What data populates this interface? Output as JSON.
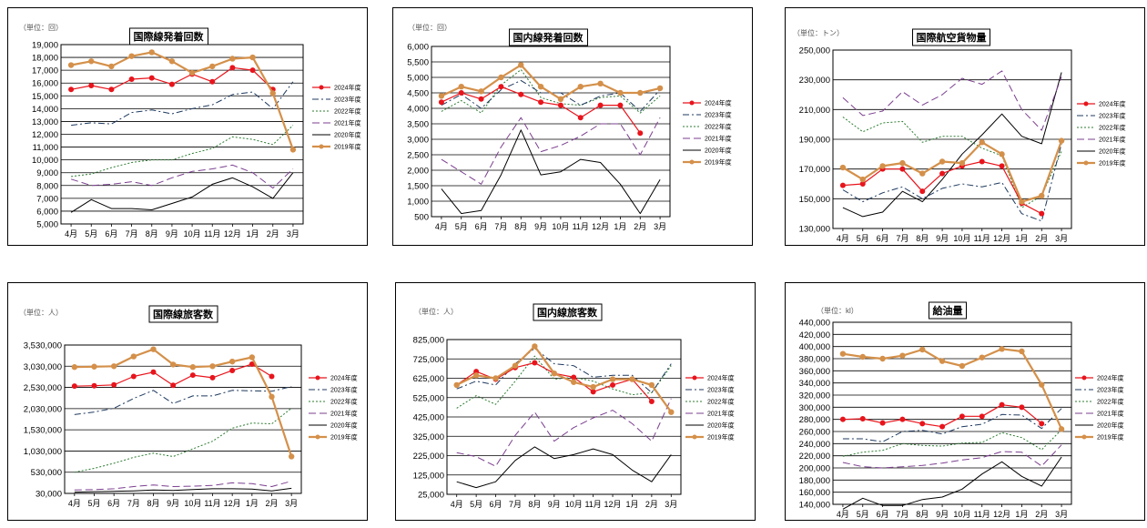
{
  "months": [
    "4月",
    "5月",
    "6月",
    "7月",
    "8月",
    "9月",
    "10月",
    "11月",
    "12月",
    "1月",
    "2月",
    "3月"
  ],
  "series_names": [
    "2024年度",
    "2023年度",
    "2022年度",
    "2021年度",
    "2020年度",
    "2019年度"
  ],
  "colors": {
    "y2024": "#e8141c",
    "y2023": "#1f3a5f",
    "y2022": "#2e7d32",
    "y2021": "#7b3f8f",
    "y2020": "#000000",
    "y2019": "#d4904a"
  },
  "chart_data": [
    {
      "type": "line",
      "title": "国際線発着回数",
      "unit": "（単位：回）",
      "ylim": [
        5000,
        19000
      ],
      "yticks": [
        "5,000",
        "6,000",
        "7,000",
        "8,000",
        "9,000",
        "10,000",
        "11,000",
        "12,000",
        "13,000",
        "14,000",
        "15,000",
        "16,000",
        "17,000",
        "18,000",
        "19,000"
      ],
      "categories": [
        "4月",
        "5月",
        "6月",
        "7月",
        "8月",
        "9月",
        "10月",
        "11月",
        "12月",
        "1月",
        "2月",
        "3月"
      ],
      "series": [
        {
          "name": "2024年度",
          "values": [
            15500,
            15800,
            15500,
            16300,
            16400,
            15900,
            16700,
            16100,
            17200,
            17000,
            15500,
            null
          ]
        },
        {
          "name": "2023年度",
          "values": [
            12700,
            12900,
            12800,
            13700,
            13900,
            13600,
            14000,
            14300,
            15100,
            15300,
            14000,
            16100
          ]
        },
        {
          "name": "2022年度",
          "values": [
            8700,
            8900,
            9400,
            9800,
            10000,
            10000,
            10500,
            10900,
            11800,
            11600,
            11200,
            12700
          ]
        },
        {
          "name": "2021年度",
          "values": [
            8500,
            8000,
            8100,
            8300,
            8000,
            8600,
            9100,
            9300,
            9600,
            9000,
            7800,
            9300
          ]
        },
        {
          "name": "2020年度",
          "values": [
            5900,
            6900,
            6200,
            6200,
            6100,
            6600,
            7100,
            8100,
            8600,
            7900,
            7000,
            9000
          ]
        },
        {
          "name": "2019年度",
          "values": [
            17400,
            17700,
            17300,
            18100,
            18400,
            17700,
            16800,
            17300,
            17900,
            18000,
            15200,
            10800
          ]
        }
      ]
    },
    {
      "type": "line",
      "title": "国内線発着回数",
      "unit": "（単位：回）",
      "ylim": [
        500,
        6000
      ],
      "yticks": [
        "500",
        "1,000",
        "1,500",
        "2,000",
        "2,500",
        "3,000",
        "3,500",
        "4,000",
        "4,500",
        "5,000",
        "5,500",
        "6,000"
      ],
      "categories": [
        "4月",
        "5月",
        "6月",
        "7月",
        "8月",
        "9月",
        "10月",
        "11月",
        "12月",
        "1月",
        "2月",
        "3月"
      ],
      "series": [
        {
          "name": "2024年度",
          "values": [
            4200,
            4500,
            4300,
            4700,
            4450,
            4200,
            4100,
            3700,
            4100,
            4100,
            3200,
            null
          ]
        },
        {
          "name": "2023年度",
          "values": [
            4100,
            4450,
            4000,
            4600,
            4900,
            4500,
            4500,
            4100,
            4400,
            4500,
            3900,
            4600
          ]
        },
        {
          "name": "2022年度",
          "values": [
            3900,
            4250,
            3850,
            4750,
            5250,
            4350,
            4150,
            4100,
            4350,
            4400,
            3850,
            4400
          ]
        },
        {
          "name": "2021年度",
          "values": [
            2350,
            1950,
            1550,
            2750,
            3700,
            2600,
            2800,
            3100,
            3500,
            3500,
            2500,
            3700
          ]
        },
        {
          "name": "2020年度",
          "values": [
            1400,
            600,
            700,
            1850,
            3300,
            1850,
            1950,
            2350,
            2250,
            1550,
            600,
            1700
          ]
        },
        {
          "name": "2019年度",
          "values": [
            4400,
            4700,
            4550,
            5000,
            5400,
            4700,
            4300,
            4700,
            4800,
            4500,
            4500,
            4650
          ]
        }
      ]
    },
    {
      "type": "line",
      "title": "国際航空貨物量",
      "unit": "（単位：トン）",
      "ylim": [
        130000,
        250000
      ],
      "yticks": [
        "130,000",
        "150,000",
        "170,000",
        "190,000",
        "210,000",
        "230,000",
        "250,000"
      ],
      "categories": [
        "4月",
        "5月",
        "6月",
        "7月",
        "8月",
        "9月",
        "10月",
        "11月",
        "12月",
        "1月",
        "2月",
        "3月"
      ],
      "series": [
        {
          "name": "2024年度",
          "values": [
            159000,
            160000,
            170000,
            170000,
            155000,
            167000,
            172000,
            175000,
            172000,
            147000,
            140000,
            null
          ]
        },
        {
          "name": "2023年度",
          "values": [
            156000,
            148000,
            154000,
            158000,
            150000,
            157000,
            160000,
            158000,
            161000,
            140000,
            135000,
            187000
          ]
        },
        {
          "name": "2022年度",
          "values": [
            205000,
            195000,
            201000,
            202000,
            188000,
            192000,
            192000,
            184000,
            179000,
            144000,
            152000,
            182000
          ]
        },
        {
          "name": "2021年度",
          "values": [
            218000,
            206000,
            209000,
            222000,
            213000,
            220000,
            231000,
            227000,
            236000,
            210000,
            196000,
            232000
          ]
        },
        {
          "name": "2020年度",
          "values": [
            144000,
            138000,
            141000,
            155000,
            148000,
            163000,
            180000,
            193000,
            207000,
            192000,
            187000,
            235000
          ]
        },
        {
          "name": "2019年度",
          "values": [
            171000,
            163000,
            172000,
            174000,
            167000,
            175000,
            174000,
            188000,
            180000,
            148000,
            152000,
            189000
          ]
        }
      ]
    },
    {
      "type": "line",
      "title": "国際線旅客数",
      "unit": "（単位：人）",
      "ylim": [
        30000,
        3530000
      ],
      "yticks": [
        "30,000",
        "530,000",
        "1,030,000",
        "1,530,000",
        "2,030,000",
        "2,530,000",
        "3,030,000",
        "3,530,000"
      ],
      "categories": [
        "4月",
        "5月",
        "6月",
        "7月",
        "8月",
        "9月",
        "10月",
        "11月",
        "12月",
        "1月",
        "2月",
        "3月"
      ],
      "series": [
        {
          "name": "2024年度",
          "values": [
            2560000,
            2570000,
            2590000,
            2790000,
            2890000,
            2580000,
            2820000,
            2760000,
            2930000,
            3080000,
            2790000,
            null
          ]
        },
        {
          "name": "2023年度",
          "values": [
            1890000,
            1950000,
            2040000,
            2270000,
            2460000,
            2150000,
            2330000,
            2330000,
            2460000,
            2450000,
            2440000,
            2550000
          ]
        },
        {
          "name": "2022年度",
          "values": [
            530000,
            620000,
            740000,
            880000,
            980000,
            900000,
            1080000,
            1260000,
            1570000,
            1690000,
            1670000,
            2040000
          ]
        },
        {
          "name": "2021年度",
          "values": [
            110000,
            120000,
            140000,
            190000,
            230000,
            190000,
            200000,
            220000,
            280000,
            260000,
            190000,
            320000
          ]
        },
        {
          "name": "2020年度",
          "values": [
            60000,
            70000,
            80000,
            90000,
            110000,
            100000,
            120000,
            140000,
            140000,
            130000,
            90000,
            150000
          ]
        },
        {
          "name": "2019年度",
          "values": [
            3010000,
            3020000,
            3030000,
            3260000,
            3430000,
            3070000,
            3010000,
            3030000,
            3140000,
            3240000,
            2310000,
            900000
          ]
        }
      ]
    },
    {
      "type": "line",
      "title": "国内線旅客数",
      "unit": "（単位：人）",
      "ylim": [
        25000,
        825000
      ],
      "yticks": [
        "25,000",
        "125,000",
        "225,000",
        "325,000",
        "425,000",
        "525,000",
        "625,000",
        "725,000",
        "825,000"
      ],
      "categories": [
        "4月",
        "5月",
        "6月",
        "7月",
        "8月",
        "9月",
        "10月",
        "11月",
        "12月",
        "1月",
        "2月",
        "3月"
      ],
      "series": [
        {
          "name": "2024年度",
          "values": [
            590000,
            660000,
            620000,
            680000,
            705000,
            650000,
            630000,
            555000,
            590000,
            620000,
            505000,
            null
          ]
        },
        {
          "name": "2023年度",
          "values": [
            570000,
            610000,
            590000,
            700000,
            780000,
            700000,
            690000,
            630000,
            640000,
            640000,
            550000,
            700000
          ]
        },
        {
          "name": "2022年度",
          "values": [
            470000,
            535000,
            490000,
            610000,
            740000,
            620000,
            630000,
            610000,
            570000,
            540000,
            550000,
            690000
          ]
        },
        {
          "name": "2021年度",
          "values": [
            240000,
            220000,
            170000,
            330000,
            450000,
            300000,
            370000,
            420000,
            460000,
            390000,
            300000,
            520000
          ]
        },
        {
          "name": "2020年度",
          "values": [
            90000,
            60000,
            90000,
            200000,
            270000,
            210000,
            230000,
            260000,
            230000,
            150000,
            90000,
            230000
          ]
        },
        {
          "name": "2019年度",
          "values": [
            590000,
            640000,
            625000,
            690000,
            790000,
            650000,
            605000,
            580000,
            620000,
            620000,
            590000,
            450000
          ]
        }
      ]
    },
    {
      "type": "line",
      "title": "給油量",
      "unit": "（単位：kl）",
      "ylim": [
        140000,
        440000
      ],
      "yticks": [
        "140,000",
        "160,000",
        "180,000",
        "200,000",
        "220,000",
        "240,000",
        "260,000",
        "280,000",
        "300,000",
        "320,000",
        "340,000",
        "360,000",
        "380,000",
        "400,000",
        "420,000",
        "440,000"
      ],
      "categories": [
        "4月",
        "5月",
        "6月",
        "7月",
        "8月",
        "9月",
        "10月",
        "11月",
        "12月",
        "1月",
        "2月",
        "3月"
      ],
      "series": [
        {
          "name": "2024年度",
          "values": [
            280000,
            281000,
            274000,
            280000,
            273000,
            268000,
            285000,
            285000,
            304000,
            300000,
            273000,
            null
          ]
        },
        {
          "name": "2023年度",
          "values": [
            248000,
            248000,
            243000,
            260000,
            262000,
            256000,
            268000,
            272000,
            288000,
            287000,
            265000,
            298000
          ]
        },
        {
          "name": "2022年度",
          "values": [
            219000,
            226000,
            229000,
            240000,
            237000,
            236000,
            241000,
            242000,
            258000,
            250000,
            230000,
            263000
          ]
        },
        {
          "name": "2021年度",
          "values": [
            209000,
            202000,
            200000,
            202000,
            204000,
            208000,
            213000,
            217000,
            227000,
            226000,
            203000,
            238000
          ]
        },
        {
          "name": "2020年度",
          "values": [
            132000,
            150000,
            138000,
            138000,
            148000,
            152000,
            165000,
            190000,
            210000,
            186000,
            170000,
            218000
          ]
        },
        {
          "name": "2019年度",
          "values": [
            388000,
            383000,
            380000,
            385000,
            395000,
            376000,
            368000,
            382000,
            396000,
            392000,
            337000,
            264000
          ]
        }
      ]
    }
  ]
}
